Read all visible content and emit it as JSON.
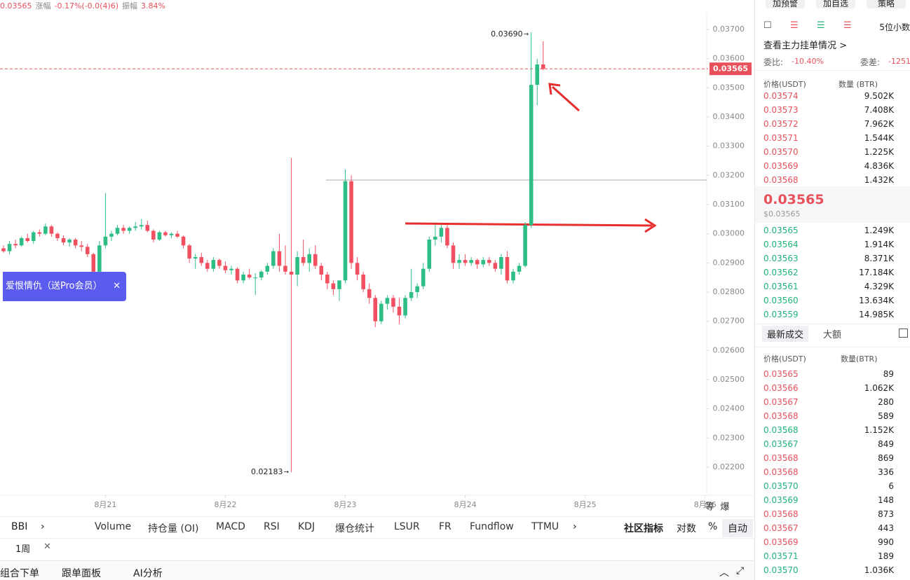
{
  "header": {
    "items": [
      {
        "text": "0.03565",
        "color": "#e8505b"
      },
      {
        "text": "涨幅",
        "color": "#888"
      },
      {
        "text": "-0.17%(-0.0(4)6)",
        "color": "#e8505b"
      },
      {
        "text": "振幅",
        "color": "#888"
      },
      {
        "text": "3.84%",
        "color": "#e8505b"
      }
    ],
    "buttons": [
      "加预警",
      "加自选",
      "策略"
    ]
  },
  "popup": "爱恨情仇（送Pro会员）",
  "chart_data": {
    "type": "candlestick",
    "up_color": "#2ebd85",
    "down_color": "#f0505f",
    "xlim": [
      0,
      117.5
    ],
    "xticks": [
      {
        "value": 17,
        "label": "8月21"
      },
      {
        "value": 37,
        "label": "8月22"
      },
      {
        "value": 57,
        "label": "8月23"
      },
      {
        "value": 77,
        "label": "8月24"
      },
      {
        "value": 97,
        "label": "8月25"
      },
      {
        "value": 117,
        "label": "8月26"
      }
    ],
    "ylim": [
      0.0218,
      0.0371
    ],
    "yticks": [
      {
        "value": 0.022,
        "label": "0.02200"
      },
      {
        "value": 0.023,
        "label": "0.02300"
      },
      {
        "value": 0.024,
        "label": "0.02400"
      },
      {
        "value": 0.025,
        "label": "0.02500"
      },
      {
        "value": 0.026,
        "label": "0.02600"
      },
      {
        "value": 0.027,
        "label": "0.02700"
      },
      {
        "value": 0.028,
        "label": "0.02800"
      },
      {
        "value": 0.029,
        "label": "0.02900"
      },
      {
        "value": 0.03,
        "label": "0.03000"
      },
      {
        "value": 0.031,
        "label": "0.03100"
      },
      {
        "value": 0.032,
        "label": "0.03200"
      },
      {
        "value": 0.033,
        "label": "0.03300"
      },
      {
        "value": 0.034,
        "label": "0.03400"
      },
      {
        "value": 0.035,
        "label": "0.03500"
      },
      {
        "value": 0.036,
        "label": "0.03600"
      },
      {
        "value": 0.037,
        "label": "0.03700"
      }
    ],
    "current_price": {
      "value": 0.03565,
      "label": "0.03565"
    },
    "annotations": [
      {
        "index": 88,
        "value": 0.0369,
        "label": "0.03690"
      },
      {
        "index": 48,
        "value": 0.02183,
        "label": "0.02183"
      }
    ],
    "ohlc": [
      [
        0.0295,
        0.0296,
        0.02935,
        0.0294
      ],
      [
        0.0294,
        0.02975,
        0.0293,
        0.02965
      ],
      [
        0.02965,
        0.0298,
        0.0295,
        0.0296
      ],
      [
        0.0296,
        0.0299,
        0.02955,
        0.02985
      ],
      [
        0.02985,
        0.03,
        0.0297,
        0.02975
      ],
      [
        0.02975,
        0.0301,
        0.02965,
        0.03005
      ],
      [
        0.03005,
        0.03015,
        0.0299,
        0.03
      ],
      [
        0.03,
        0.03035,
        0.02995,
        0.03025
      ],
      [
        0.03025,
        0.0303,
        0.0299,
        0.03
      ],
      [
        0.03,
        0.03005,
        0.02975,
        0.02985
      ],
      [
        0.02985,
        0.02995,
        0.0296,
        0.0297
      ],
      [
        0.0297,
        0.02985,
        0.02955,
        0.0298
      ],
      [
        0.0298,
        0.02985,
        0.0295,
        0.0296
      ],
      [
        0.0296,
        0.02975,
        0.0294,
        0.02955
      ],
      [
        0.02955,
        0.02965,
        0.0292,
        0.0293
      ],
      [
        0.0293,
        0.02935,
        0.0285,
        0.0287
      ],
      [
        0.0287,
        0.02975,
        0.02865,
        0.0296
      ],
      [
        0.0296,
        0.0314,
        0.0295,
        0.0299
      ],
      [
        0.0299,
        0.0301,
        0.02975,
        0.03
      ],
      [
        0.03,
        0.0303,
        0.02995,
        0.0302
      ],
      [
        0.0302,
        0.0303,
        0.03,
        0.0301
      ],
      [
        0.0301,
        0.03025,
        0.03,
        0.0302
      ],
      [
        0.0302,
        0.0304,
        0.0301,
        0.03025
      ],
      [
        0.03025,
        0.0305,
        0.03015,
        0.0303
      ],
      [
        0.0303,
        0.03045,
        0.03005,
        0.0301
      ],
      [
        0.0301,
        0.03015,
        0.0297,
        0.0298
      ],
      [
        0.0298,
        0.0301,
        0.02975,
        0.03005
      ],
      [
        0.03005,
        0.0301,
        0.0299,
        0.02995
      ],
      [
        0.02995,
        0.03005,
        0.02985,
        0.03
      ],
      [
        0.03,
        0.0301,
        0.02985,
        0.0299
      ],
      [
        0.0299,
        0.02995,
        0.0295,
        0.0296
      ],
      [
        0.0296,
        0.02965,
        0.029,
        0.02915
      ],
      [
        0.02915,
        0.0293,
        0.0288,
        0.0292
      ],
      [
        0.0292,
        0.02935,
        0.0289,
        0.029
      ],
      [
        0.029,
        0.0291,
        0.0287,
        0.0288
      ],
      [
        0.0288,
        0.0292,
        0.0287,
        0.0291
      ],
      [
        0.0291,
        0.02915,
        0.0288,
        0.0289
      ],
      [
        0.0289,
        0.02905,
        0.02865,
        0.02875
      ],
      [
        0.02875,
        0.0289,
        0.0286,
        0.0288
      ],
      [
        0.0288,
        0.02885,
        0.0283,
        0.0284
      ],
      [
        0.0284,
        0.0287,
        0.0283,
        0.0286
      ],
      [
        0.0286,
        0.0288,
        0.02845,
        0.0285
      ],
      [
        0.0285,
        0.02865,
        0.0279,
        0.0285
      ],
      [
        0.0285,
        0.02875,
        0.0284,
        0.0287
      ],
      [
        0.0287,
        0.029,
        0.0286,
        0.0289
      ],
      [
        0.0289,
        0.0295,
        0.0288,
        0.0294
      ],
      [
        0.0294,
        0.03,
        0.0287,
        0.0289
      ],
      [
        0.0289,
        0.0296,
        0.0286,
        0.0287
      ],
      [
        0.0287,
        0.0326,
        0.02183,
        0.0286
      ],
      [
        0.0286,
        0.0294,
        0.0282,
        0.0292
      ],
      [
        0.0292,
        0.0298,
        0.0289,
        0.029
      ],
      [
        0.029,
        0.0295,
        0.0287,
        0.0293
      ],
      [
        0.0293,
        0.0296,
        0.0288,
        0.0289
      ],
      [
        0.0289,
        0.029,
        0.0284,
        0.0286
      ],
      [
        0.0286,
        0.0287,
        0.0281,
        0.0283
      ],
      [
        0.0283,
        0.0284,
        0.0279,
        0.0281
      ],
      [
        0.0281,
        0.0283,
        0.0277,
        0.0284
      ],
      [
        0.0284,
        0.0322,
        0.0283,
        0.0318
      ],
      [
        0.0318,
        0.032,
        0.0288,
        0.029
      ],
      [
        0.029,
        0.0292,
        0.0284,
        0.0286
      ],
      [
        0.0286,
        0.0287,
        0.028,
        0.0281
      ],
      [
        0.0281,
        0.0283,
        0.0276,
        0.0278
      ],
      [
        0.0278,
        0.0279,
        0.0268,
        0.027
      ],
      [
        0.027,
        0.0277,
        0.0269,
        0.0276
      ],
      [
        0.0276,
        0.0279,
        0.0274,
        0.0278
      ],
      [
        0.0278,
        0.0279,
        0.0273,
        0.0275
      ],
      [
        0.0275,
        0.0278,
        0.0269,
        0.0272
      ],
      [
        0.0272,
        0.0279,
        0.0271,
        0.0278
      ],
      [
        0.0278,
        0.0288,
        0.0277,
        0.028
      ],
      [
        0.028,
        0.0283,
        0.0278,
        0.0282
      ],
      [
        0.0282,
        0.029,
        0.0281,
        0.0288
      ],
      [
        0.0288,
        0.0299,
        0.0287,
        0.0298
      ],
      [
        0.0298,
        0.0303,
        0.0296,
        0.0299
      ],
      [
        0.0299,
        0.0303,
        0.0297,
        0.0302
      ],
      [
        0.0302,
        0.0303,
        0.0295,
        0.0296
      ],
      [
        0.0296,
        0.0297,
        0.0288,
        0.029
      ],
      [
        0.029,
        0.0293,
        0.0288,
        0.0291
      ],
      [
        0.0291,
        0.0293,
        0.0289,
        0.029
      ],
      [
        0.029,
        0.0292,
        0.0289,
        0.0291
      ],
      [
        0.0291,
        0.02915,
        0.0288,
        0.02895
      ],
      [
        0.02895,
        0.0292,
        0.02885,
        0.0291
      ],
      [
        0.0291,
        0.0292,
        0.0289,
        0.029
      ],
      [
        0.029,
        0.0291,
        0.0287,
        0.0288
      ],
      [
        0.0288,
        0.0293,
        0.0286,
        0.0292
      ],
      [
        0.0292,
        0.0294,
        0.0283,
        0.0284
      ],
      [
        0.0284,
        0.0288,
        0.0283,
        0.0287
      ],
      [
        0.0287,
        0.029,
        0.0286,
        0.0289
      ],
      [
        0.0289,
        0.0304,
        0.02885,
        0.0303
      ],
      [
        0.0303,
        0.0369,
        0.0302,
        0.0351
      ],
      [
        0.0351,
        0.036,
        0.0344,
        0.0358
      ],
      [
        0.0358,
        0.0366,
        0.0356,
        0.03565
      ]
    ],
    "axis_extra": [
      "等",
      "爆"
    ]
  },
  "toolbar": {
    "tabs": [
      "BBI",
      "Volume",
      "持仓量 (OI)",
      "MACD",
      "RSI",
      "KDJ",
      "爆仓统计",
      "LSUR",
      "FR",
      "Fundflow",
      "TTMU"
    ],
    "right": [
      "社区指标",
      "对数",
      "%",
      "自动"
    ],
    "period": "1周"
  },
  "bottom": [
    "组合下单",
    "跟单面板",
    "AI分析"
  ],
  "orderbook": {
    "decimals": "5位小数",
    "link": "查看主力挂单情况 >",
    "ratio_label": "委比:",
    "ratio": "-10.40%",
    "diff_label": "委差:",
    "diff": "-1251",
    "headers": [
      "价格(USDT)",
      "数量 (BTR)"
    ],
    "asks": [
      [
        "0.03574",
        "9.502K"
      ],
      [
        "0.03573",
        "7.408K"
      ],
      [
        "0.03572",
        "7.962K"
      ],
      [
        "0.03571",
        "1.544K"
      ],
      [
        "0.03570",
        "1.225K"
      ],
      [
        "0.03569",
        "4.836K"
      ],
      [
        "0.03568",
        "1.432K"
      ]
    ],
    "mid": "0.03565",
    "mid_usd": "$0.03565",
    "bids": [
      [
        "0.03565",
        "1.249K"
      ],
      [
        "0.03564",
        "1.914K"
      ],
      [
        "0.03563",
        "8.371K"
      ],
      [
        "0.03562",
        "17.184K"
      ],
      [
        "0.03561",
        "4.329K"
      ],
      [
        "0.03560",
        "13.634K"
      ],
      [
        "0.03559",
        "14.985K"
      ]
    ]
  },
  "trades": {
    "tabs": [
      "最新成交",
      "大额"
    ],
    "headers": [
      "价格(USDT)",
      "数量(BTR)"
    ],
    "rows": [
      {
        "price": "0.03565",
        "qty": "89",
        "color": "#e8505b"
      },
      {
        "price": "0.03566",
        "qty": "1.062K",
        "color": "#e8505b"
      },
      {
        "price": "0.03567",
        "qty": "280",
        "color": "#e8505b"
      },
      {
        "price": "0.03568",
        "qty": "589",
        "color": "#e8505b"
      },
      {
        "price": "0.03568",
        "qty": "1.152K",
        "color": "#1fb57a"
      },
      {
        "price": "0.03567",
        "qty": "849",
        "color": "#1fb57a"
      },
      {
        "price": "0.03568",
        "qty": "869",
        "color": "#e8505b"
      },
      {
        "price": "0.03568",
        "qty": "336",
        "color": "#e8505b"
      },
      {
        "price": "0.03570",
        "qty": "6",
        "color": "#1fb57a"
      },
      {
        "price": "0.03569",
        "qty": "148",
        "color": "#1fb57a"
      },
      {
        "price": "0.03568",
        "qty": "873",
        "color": "#e8505b"
      },
      {
        "price": "0.03567",
        "qty": "443",
        "color": "#e8505b"
      },
      {
        "price": "0.03569",
        "qty": "990",
        "color": "#e8505b"
      },
      {
        "price": "0.03571",
        "qty": "189",
        "color": "#1fb57a"
      },
      {
        "price": "0.03570",
        "qty": "1.036K",
        "color": "#1fb57a"
      }
    ]
  }
}
